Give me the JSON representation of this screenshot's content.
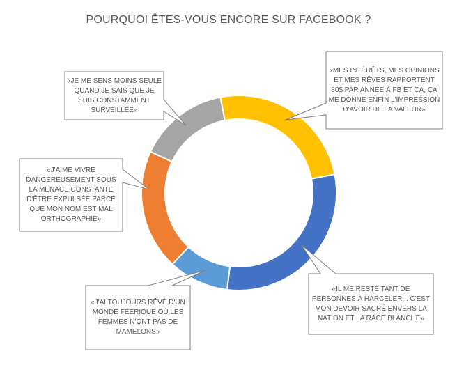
{
  "chart_data": {
    "type": "pie",
    "variant": "donut",
    "title": "POURQUOI ÊTES-VOUS ENCORE SUR FACEBOOK ?",
    "legend": "none",
    "slices": [
      {
        "value": 25,
        "color": "#FFC000",
        "label": "«MES INTÉRÊTS, MES OPINIONS ET MES RÊVES RAPPORTENT 80$ PAR ANNÉE À FB ET ÇA, ÇA ME DONNE ENFIN L'IMPRESSION D'AVOIR DE LA VALEUR»"
      },
      {
        "value": 30,
        "color": "#4472C4",
        "label": "«IL ME RESTE TANT DE PERSONNES À HARCELER... C'EST MON DEVOIR SACRÉ ENVERS LA NATION ET LA RACE BLANCHE»"
      },
      {
        "value": 10,
        "color": "#5B9BD5",
        "label": "«J'AI TOUJOURS RÊVÉ D'UN MONDE FÉERIQUE OÙ LES FEMMES N'ONT PAS DE MAMELONS»"
      },
      {
        "value": 20,
        "color": "#ED7D31",
        "label": "«J'AIME VIVRE DANGEREUSEMENT SOUS LA MENACE CONSTANTE D'ÊTRE EXPULSÉE PARCE QUE MON NOM EST MAL ORTHOGRAPHIÉ»"
      },
      {
        "value": 15,
        "color": "#A5A5A5",
        "label": "«JE ME SENS MOINS SEULE QUAND JE SAIS QUE JE SUIS CONSTAMMENT SURVEILLÉE»"
      }
    ]
  }
}
